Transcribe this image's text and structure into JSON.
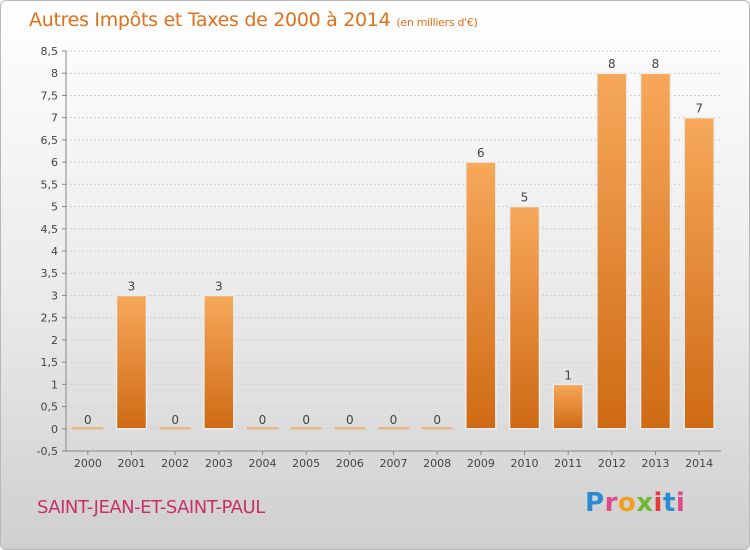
{
  "title": "Autres Impôts et Taxes de 2000 à 2014",
  "title_unit": "(en milliers d'€)",
  "commune": "SAINT-JEAN-ET-SAINT-PAUL",
  "logo": {
    "text": "Proxiti"
  },
  "colors": {
    "title": "#e0701a",
    "commune": "#c8306a",
    "bar_light": "#f7a85a",
    "bar_dark": "#cf6a14"
  },
  "chart_data": {
    "type": "bar",
    "categories": [
      "2000",
      "2001",
      "2002",
      "2003",
      "2004",
      "2005",
      "2006",
      "2007",
      "2008",
      "2009",
      "2010",
      "2011",
      "2012",
      "2013",
      "2014"
    ],
    "values": [
      0,
      3,
      0,
      3,
      0,
      0,
      0,
      0,
      0,
      6,
      5,
      1,
      8,
      8,
      7
    ],
    "value_labels": [
      "0",
      "3",
      "0",
      "3",
      "0",
      "0",
      "0",
      "0",
      "0",
      "6",
      "5",
      "1",
      "8",
      "8",
      "7"
    ],
    "ylim": [
      -0.5,
      8.5
    ],
    "yticks": [
      "-0,5",
      "0",
      "0,5",
      "1",
      "1,5",
      "2",
      "2,5",
      "3",
      "3,5",
      "4",
      "4,5",
      "5",
      "5,5",
      "6",
      "6,5",
      "7",
      "7,5",
      "8",
      "8,5"
    ],
    "ytick_values": [
      -0.5,
      0,
      0.5,
      1,
      1.5,
      2,
      2.5,
      3,
      3.5,
      4,
      4.5,
      5,
      5.5,
      6,
      6.5,
      7,
      7.5,
      8,
      8.5
    ],
    "grid": true,
    "xlabel": "",
    "ylabel": ""
  }
}
